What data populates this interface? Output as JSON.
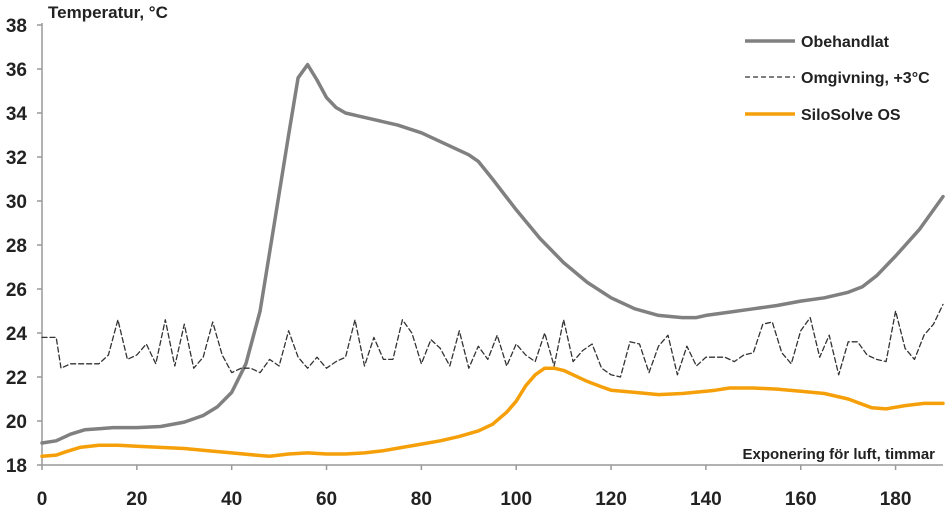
{
  "chart_data": {
    "type": "line",
    "ylabel": "Temperatur, °C",
    "xlabel": "Exponering för luft, timmar",
    "xlim": [
      0,
      190
    ],
    "ylim": [
      18,
      38
    ],
    "xticks": [
      0,
      20,
      40,
      60,
      80,
      100,
      120,
      140,
      160,
      180
    ],
    "yticks": [
      18,
      20,
      22,
      24,
      26,
      28,
      30,
      32,
      34,
      36,
      38
    ],
    "grid": false,
    "legend_position": "top-right",
    "series": [
      {
        "name": "Obehandlat",
        "color": "#808080",
        "style": "solid",
        "x": [
          0,
          3,
          6,
          9,
          12,
          15,
          20,
          25,
          30,
          34,
          37,
          40,
          43,
          46,
          49,
          52,
          54,
          56,
          58,
          60,
          62,
          64,
          67,
          70,
          75,
          80,
          85,
          90,
          92,
          95,
          100,
          105,
          110,
          115,
          120,
          125,
          130,
          135,
          138,
          140,
          145,
          150,
          155,
          160,
          165,
          170,
          173,
          176,
          180,
          185,
          190
        ],
        "y": [
          19.0,
          19.1,
          19.4,
          19.6,
          19.65,
          19.7,
          19.7,
          19.75,
          19.95,
          20.25,
          20.65,
          21.3,
          22.6,
          25.0,
          29.0,
          33.0,
          35.6,
          36.2,
          35.5,
          34.7,
          34.25,
          34.0,
          33.85,
          33.7,
          33.45,
          33.1,
          32.6,
          32.1,
          31.8,
          31.0,
          29.6,
          28.3,
          27.2,
          26.3,
          25.6,
          25.1,
          24.8,
          24.7,
          24.7,
          24.8,
          24.95,
          25.1,
          25.25,
          25.45,
          25.6,
          25.85,
          26.1,
          26.6,
          27.5,
          28.7,
          30.2
        ]
      },
      {
        "name": "Omgivning, +3°C",
        "color": "#333333",
        "style": "dashed",
        "x": [
          0,
          3,
          4,
          6,
          9,
          12,
          14,
          16,
          18,
          20,
          22,
          24,
          26,
          28,
          30,
          32,
          34,
          36,
          38,
          40,
          42,
          44,
          46,
          48,
          50,
          52,
          54,
          56,
          58,
          60,
          62,
          64,
          66,
          68,
          70,
          72,
          74,
          76,
          78,
          80,
          82,
          84,
          86,
          88,
          90,
          92,
          94,
          96,
          98,
          100,
          102,
          104,
          106,
          108,
          110,
          112,
          114,
          116,
          118,
          120,
          122,
          124,
          126,
          128,
          130,
          132,
          134,
          136,
          138,
          140,
          142,
          144,
          146,
          148,
          150,
          152,
          154,
          156,
          158,
          160,
          162,
          164,
          166,
          168,
          170,
          172,
          174,
          176,
          178,
          180,
          182,
          184,
          186,
          188,
          190
        ],
        "y": [
          23.8,
          23.8,
          22.4,
          22.6,
          22.6,
          22.6,
          23.0,
          24.6,
          22.8,
          23.0,
          23.5,
          22.6,
          24.6,
          22.5,
          24.4,
          22.4,
          22.9,
          24.5,
          23.0,
          22.2,
          22.4,
          22.4,
          22.2,
          22.8,
          22.5,
          24.1,
          22.9,
          22.4,
          22.9,
          22.4,
          22.7,
          22.9,
          24.6,
          22.5,
          23.8,
          22.8,
          22.8,
          24.6,
          24.0,
          22.6,
          23.7,
          23.3,
          22.5,
          24.1,
          22.4,
          23.4,
          22.8,
          23.9,
          22.5,
          23.5,
          23.0,
          22.7,
          24.0,
          22.5,
          24.6,
          22.7,
          23.2,
          23.5,
          22.4,
          22.1,
          22.0,
          23.6,
          23.5,
          22.2,
          23.4,
          23.9,
          22.1,
          23.4,
          22.5,
          22.9,
          22.9,
          22.9,
          22.7,
          23.0,
          23.1,
          24.4,
          24.5,
          23.1,
          22.6,
          24.1,
          24.7,
          22.9,
          23.9,
          22.1,
          23.6,
          23.6,
          23.0,
          22.8,
          22.7,
          25.0,
          23.3,
          22.8,
          23.9,
          24.4,
          25.3
        ]
      },
      {
        "name": "SiloSolve OS",
        "color": "#F5A00A",
        "style": "solid",
        "x": [
          0,
          3,
          5,
          8,
          12,
          16,
          20,
          25,
          30,
          35,
          40,
          45,
          48,
          50,
          52,
          56,
          60,
          64,
          68,
          72,
          76,
          80,
          84,
          88,
          92,
          95,
          98,
          100,
          102,
          104,
          106,
          108,
          110,
          112,
          115,
          118,
          120,
          125,
          130,
          135,
          140,
          142,
          145,
          150,
          155,
          160,
          165,
          170,
          175,
          178,
          182,
          186,
          190
        ],
        "y": [
          18.4,
          18.45,
          18.6,
          18.8,
          18.9,
          18.9,
          18.85,
          18.8,
          18.75,
          18.65,
          18.55,
          18.45,
          18.4,
          18.45,
          18.5,
          18.55,
          18.5,
          18.5,
          18.55,
          18.65,
          18.8,
          18.95,
          19.1,
          19.3,
          19.55,
          19.85,
          20.4,
          20.9,
          21.6,
          22.1,
          22.4,
          22.4,
          22.3,
          22.1,
          21.8,
          21.55,
          21.4,
          21.3,
          21.2,
          21.25,
          21.35,
          21.4,
          21.5,
          21.5,
          21.45,
          21.35,
          21.25,
          21.0,
          20.6,
          20.55,
          20.7,
          20.8,
          20.8
        ]
      }
    ]
  }
}
